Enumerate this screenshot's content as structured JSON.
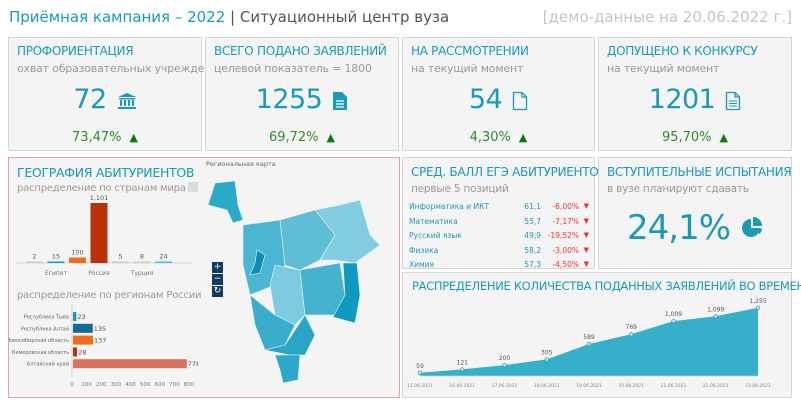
{
  "header": {
    "title_main": "Приёмная кампания – 2022",
    "title_sep": " | ",
    "title_sub": "Ситуационный центр вуза",
    "demo": "[демо-данные на 20.06.2022 г.]"
  },
  "cards": [
    {
      "title": "ПРОФОРИЕНТАЦИЯ",
      "subtitle": "охват образовательных учреждений",
      "value": "72",
      "icon": "bank-icon",
      "change": "73,47%",
      "trend": "up"
    },
    {
      "title": "ВСЕГО ПОДАНО ЗАЯВЛЕНИЙ",
      "subtitle": "целевой показатель = 1800",
      "value": "1255",
      "icon": "document-filled-icon",
      "change": "69,72%",
      "trend": "up"
    },
    {
      "title": "НА РАССМОТРЕНИИ",
      "subtitle": "на текущий момент",
      "value": "54",
      "icon": "document-outline-icon",
      "change": "4,30%",
      "trend": "up"
    },
    {
      "title": "ДОПУЩЕНО К КОНКУРСУ",
      "subtitle": "на текущий момент",
      "value": "1201",
      "icon": "document-lines-icon",
      "change": "95,70%",
      "trend": "up"
    }
  ],
  "geo": {
    "title": "ГЕОГРАФИЯ АБИТУРИЕНТОВ",
    "countries_subtitle": "распределение по странам мира",
    "regions_subtitle": "распределение по регионам России",
    "map_title": "Региональная карта",
    "zoom_in": "+",
    "zoom_out": "−",
    "reset": "↻"
  },
  "ege": {
    "title": "СРЕД. БАЛЛ ЕГЭ АБИТУРИЕНТОВ",
    "subtitle": "первые 5 позиций",
    "rows": [
      {
        "name": "Информатика и ИКТ",
        "value": "61,1",
        "change": "-6,00%",
        "arrow": "🠗"
      },
      {
        "name": "Математика",
        "value": "55,7",
        "change": "-7,17%",
        "arrow": "🠗"
      },
      {
        "name": "Русский язык",
        "value": "49,9",
        "change": "-19,52%",
        "arrow": "🠗"
      },
      {
        "name": "Физика",
        "value": "58,2",
        "change": "-3,00%",
        "arrow": "🠗"
      },
      {
        "name": "Химия",
        "value": "57,3",
        "change": "-4,50%",
        "arrow": "🠗"
      }
    ]
  },
  "exams": {
    "title": "ВСТУПИТЕЛЬНЫЕ ИСПЫТАНИЯ",
    "subtitle": "в вузе планируют сдавать",
    "value": "24,1%",
    "icon": "pie-chart-icon"
  },
  "colors": {
    "accent": "#1a9ab5",
    "up": "#2e8b2e",
    "down": "#e33333",
    "border_active": "#e8a0a0"
  },
  "chart_data": [
    {
      "type": "bar",
      "title": "распределение по странам мира",
      "categories": [
        "",
        "Египет",
        "",
        "Россия",
        "",
        "Турция",
        ""
      ],
      "values": [
        2,
        15,
        100,
        1101,
        5,
        8,
        24
      ],
      "value_labels": [
        "2",
        "15",
        "100",
        "1,101",
        "5",
        "8",
        "24"
      ],
      "colors": [
        "#cccccc",
        "#1a9ac0",
        "#f26a1b",
        "#b8310b",
        "#cccccc",
        "#cccccc",
        "#3cc3e6"
      ],
      "ylim": [
        0,
        1101
      ]
    },
    {
      "type": "bar",
      "orientation": "horizontal",
      "title": "распределение по регионам России",
      "categories": [
        "Республика Тыва",
        "Республика Алтай",
        "Новосибирская область",
        "Кемеровская область",
        "Алтайский край"
      ],
      "values": [
        23,
        135,
        137,
        28,
        778
      ],
      "colors": [
        "#1a9ac0",
        "#116a9a",
        "#f26a1b",
        "#b8310b",
        "#d9735e"
      ],
      "xlim": [
        0,
        800
      ],
      "xticks": [
        0,
        100,
        200,
        300,
        400,
        500,
        600,
        700,
        800
      ]
    },
    {
      "type": "area",
      "title": "РАСПРЕДЕЛЕНИЕ КОЛИЧЕСТВА ПОДАННЫХ ЗАЯВЛЕНИЙ ВО ВРЕМЕНИ",
      "x": [
        "15.06.2021",
        "16.06.2021",
        "17.06.2021",
        "18.06.2021",
        "19.06.2021",
        "20.06.2021",
        "21.06.2021",
        "22.06.2021",
        "23.06.2021"
      ],
      "values": [
        59,
        121,
        200,
        305,
        589,
        769,
        1009,
        1099,
        1255
      ],
      "value_labels": [
        "59",
        "121",
        "200",
        "305",
        "589",
        "769",
        "1,009",
        "1,099",
        "1,255"
      ],
      "color": "#36afca"
    }
  ]
}
